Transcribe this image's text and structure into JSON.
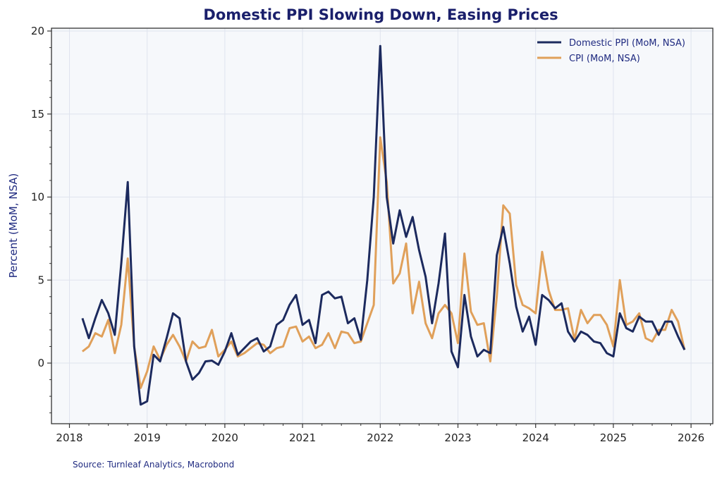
{
  "chart_data": {
    "type": "line",
    "title": "Domestic PPI Slowing Down, Easing Prices",
    "xlabel": "",
    "ylabel": "Percent (MoM, NSA)",
    "source": "Source: Turnleaf Analytics, Macrobond",
    "xlim": [
      2018,
      2026.3
    ],
    "ylim": [
      -3.7,
      20.2
    ],
    "x_ticks": [
      "2018",
      "2019",
      "2020",
      "2021",
      "2022",
      "2023",
      "2024",
      "2025",
      "2026"
    ],
    "y_ticks": [
      "0",
      "5",
      "10",
      "15",
      "20"
    ],
    "grid": true,
    "legend_position": "top-right",
    "start_month": "2018-03",
    "x": [
      "2018-03",
      "2018-04",
      "2018-05",
      "2018-06",
      "2018-07",
      "2018-08",
      "2018-09",
      "2018-10",
      "2018-11",
      "2018-12",
      "2019-01",
      "2019-02",
      "2019-03",
      "2019-04",
      "2019-05",
      "2019-06",
      "2019-07",
      "2019-08",
      "2019-09",
      "2019-10",
      "2019-11",
      "2019-12",
      "2020-01",
      "2020-02",
      "2020-03",
      "2020-04",
      "2020-05",
      "2020-06",
      "2020-07",
      "2020-08",
      "2020-09",
      "2020-10",
      "2020-11",
      "2020-12",
      "2021-01",
      "2021-02",
      "2021-03",
      "2021-04",
      "2021-05",
      "2021-06",
      "2021-07",
      "2021-08",
      "2021-09",
      "2021-10",
      "2021-11",
      "2021-12",
      "2022-01",
      "2022-02",
      "2022-03",
      "2022-04",
      "2022-05",
      "2022-06",
      "2022-07",
      "2022-08",
      "2022-09",
      "2022-10",
      "2022-11",
      "2022-12",
      "2023-01",
      "2023-02",
      "2023-03",
      "2023-04",
      "2023-05",
      "2023-06",
      "2023-07",
      "2023-08",
      "2023-09",
      "2023-10",
      "2023-11",
      "2023-12",
      "2024-01",
      "2024-02",
      "2024-03",
      "2024-04",
      "2024-05",
      "2024-06",
      "2024-07",
      "2024-08",
      "2024-09",
      "2024-10",
      "2024-11",
      "2024-12",
      "2025-01",
      "2025-02",
      "2025-03",
      "2025-04",
      "2025-05",
      "2025-06",
      "2025-07",
      "2025-08",
      "2025-09",
      "2025-10",
      "2025-11",
      "2025-12"
    ],
    "series": [
      {
        "name": "Domestic PPI (MoM, NSA)",
        "color": "#1c2a5e",
        "values": [
          2.7,
          1.5,
          2.7,
          3.8,
          3.0,
          1.7,
          6.0,
          10.9,
          1.0,
          -2.5,
          -2.3,
          0.5,
          0.1,
          1.5,
          3.0,
          2.7,
          0.1,
          -1.0,
          -0.6,
          0.1,
          0.15,
          -0.1,
          0.7,
          1.8,
          0.5,
          0.9,
          1.3,
          1.5,
          0.7,
          1.0,
          2.3,
          2.6,
          3.5,
          4.1,
          2.3,
          2.6,
          1.2,
          4.1,
          4.3,
          3.9,
          4.0,
          2.4,
          2.7,
          1.4,
          5.0,
          10.0,
          19.1,
          10.0,
          7.2,
          9.2,
          7.6,
          8.8,
          6.8,
          5.2,
          2.4,
          4.8,
          7.8,
          0.7,
          -0.25,
          4.1,
          1.6,
          0.4,
          0.8,
          0.6,
          6.5,
          8.2,
          6.0,
          3.4,
          1.9,
          2.8,
          1.1,
          4.1,
          3.8,
          3.3,
          3.6,
          1.9,
          1.3,
          1.9,
          1.7,
          1.3,
          1.2,
          0.6,
          0.4,
          3.0,
          2.1,
          1.9,
          2.8,
          2.5,
          2.5,
          1.7,
          2.5,
          2.5,
          1.6,
          0.8
        ]
      },
      {
        "name": "CPI (MoM, NSA)",
        "color": "#e0a05a",
        "values": [
          0.7,
          1.0,
          1.8,
          1.6,
          2.6,
          0.6,
          2.3,
          6.3,
          1.0,
          -1.5,
          -0.5,
          1.0,
          0.2,
          1.1,
          1.7,
          1.0,
          0.1,
          1.3,
          0.9,
          1.0,
          2.0,
          0.4,
          0.8,
          1.3,
          0.4,
          0.6,
          0.9,
          1.2,
          1.1,
          0.6,
          0.9,
          1.0,
          2.1,
          2.2,
          1.3,
          1.6,
          0.9,
          1.1,
          1.8,
          0.9,
          1.9,
          1.8,
          1.2,
          1.3,
          2.4,
          3.5,
          13.6,
          10.9,
          4.8,
          5.4,
          7.2,
          3.0,
          4.9,
          2.4,
          1.5,
          3.0,
          3.5,
          3.0,
          1.2,
          6.6,
          3.1,
          2.3,
          2.4,
          0.1,
          4.0,
          9.5,
          9.0,
          4.7,
          3.5,
          3.3,
          3.0,
          6.7,
          4.4,
          3.2,
          3.2,
          3.3,
          1.4,
          3.2,
          2.4,
          2.9,
          2.9,
          2.3,
          1.0,
          5.0,
          2.3,
          2.5,
          3.0,
          1.5,
          1.3,
          2.0,
          2.0,
          3.2,
          2.5,
          0.8
        ]
      }
    ]
  }
}
